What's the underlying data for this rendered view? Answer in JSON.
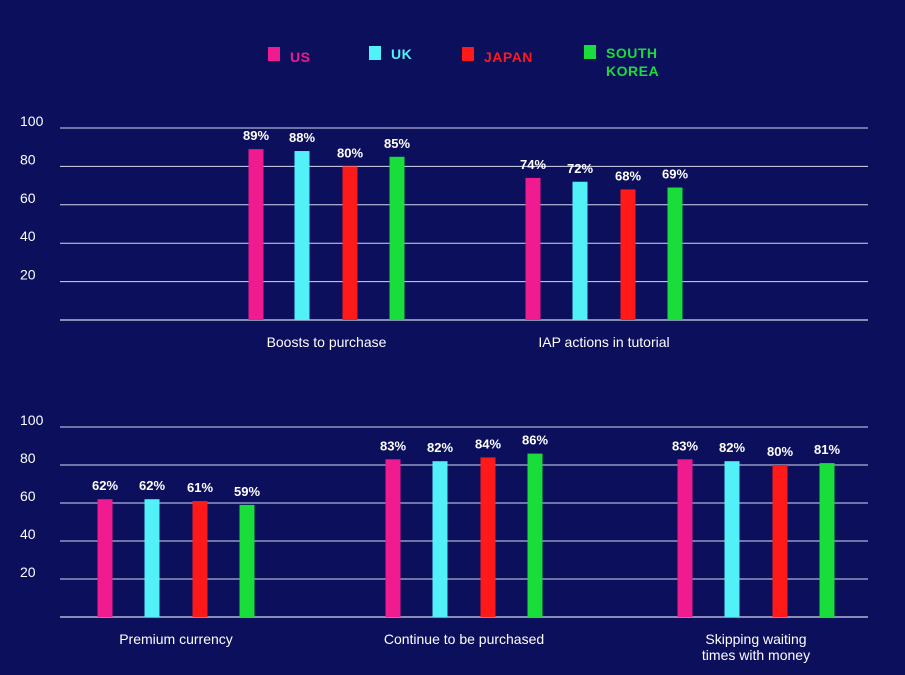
{
  "legend": [
    {
      "name": "US",
      "color": "#ef1b8f"
    },
    {
      "name": "UK",
      "color": "#52f0f7"
    },
    {
      "name": "JAPAN",
      "color": "#ff1a1a"
    },
    {
      "name": "SOUTH KOREA",
      "color": "#19dd3b"
    }
  ],
  "chart_data": [
    {
      "type": "bar",
      "title": "",
      "xlabel": "",
      "ylabel": "",
      "ylim": [
        0,
        100
      ],
      "yticks": [
        20,
        40,
        60,
        80,
        100
      ],
      "grid": true,
      "categories": [
        "Boosts to purchase",
        "IAP actions in tutorial"
      ],
      "series": [
        {
          "name": "US",
          "values": [
            89,
            74
          ]
        },
        {
          "name": "UK",
          "values": [
            88,
            72
          ]
        },
        {
          "name": "JAPAN",
          "values": [
            80,
            68
          ]
        },
        {
          "name": "SOUTH KOREA",
          "values": [
            85,
            69
          ]
        }
      ],
      "data_labels": [
        [
          "89%",
          "74%"
        ],
        [
          "88%",
          "72%"
        ],
        [
          "80%",
          "68%"
        ],
        [
          "85%",
          "69%"
        ]
      ]
    },
    {
      "type": "bar",
      "title": "",
      "xlabel": "",
      "ylabel": "",
      "ylim": [
        0,
        100
      ],
      "yticks": [
        20,
        40,
        60,
        80,
        100
      ],
      "grid": true,
      "categories": [
        "Premium currency",
        "Continue to be purchased",
        "Skipping waiting times with money"
      ],
      "category_lines": [
        [
          "Premium currency"
        ],
        [
          "Continue to be purchased"
        ],
        [
          "Skipping waiting",
          "times with money"
        ]
      ],
      "series": [
        {
          "name": "US",
          "values": [
            62,
            83,
            83
          ]
        },
        {
          "name": "UK",
          "values": [
            62,
            82,
            82
          ]
        },
        {
          "name": "JAPAN",
          "values": [
            61,
            84,
            80
          ]
        },
        {
          "name": "SOUTH KOREA",
          "values": [
            59,
            86,
            81
          ]
        }
      ],
      "data_labels": [
        [
          "62%",
          "83%",
          "83%"
        ],
        [
          "62%",
          "82%",
          "82%"
        ],
        [
          "61%",
          "84%",
          "80%"
        ],
        [
          "59%",
          "86%",
          "81%"
        ]
      ]
    }
  ]
}
